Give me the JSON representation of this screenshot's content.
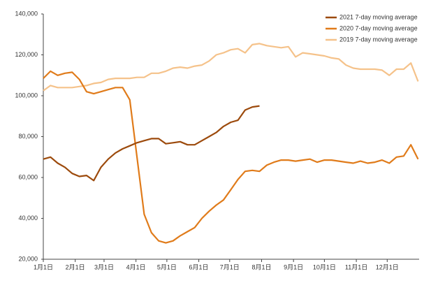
{
  "chart_data": {
    "type": "line",
    "x": [
      0,
      7,
      14,
      21,
      28,
      35,
      42,
      49,
      56,
      63,
      70,
      77,
      84,
      91,
      98,
      105,
      112,
      119,
      126,
      133,
      140,
      147,
      154,
      161,
      168,
      175,
      182,
      189,
      196,
      203,
      210,
      217,
      224,
      231,
      238,
      245,
      252,
      259,
      266,
      273,
      280,
      287,
      294,
      301,
      308,
      315,
      322,
      329,
      336,
      343,
      350,
      357,
      364
    ],
    "xlim": [
      0,
      365
    ],
    "xticks": [
      {
        "value": 0,
        "label": "1月1日"
      },
      {
        "value": 31,
        "label": "2月1日"
      },
      {
        "value": 59,
        "label": "3月1日"
      },
      {
        "value": 90,
        "label": "4月1日"
      },
      {
        "value": 120,
        "label": "5月1日"
      },
      {
        "value": 151,
        "label": "6月1日"
      },
      {
        "value": 181,
        "label": "7月1日"
      },
      {
        "value": 212,
        "label": "8月1日"
      },
      {
        "value": 243,
        "label": "9月1日"
      },
      {
        "value": 273,
        "label": "10月1日"
      },
      {
        "value": 304,
        "label": "11月1日"
      },
      {
        "value": 334,
        "label": "12月1日"
      }
    ],
    "ylim": [
      20000,
      140000
    ],
    "yticks": [
      {
        "value": 20000,
        "label": "20,000"
      },
      {
        "value": 40000,
        "label": "40,000"
      },
      {
        "value": 60000,
        "label": "60,000"
      },
      {
        "value": 80000,
        "label": "80,000"
      },
      {
        "value": 100000,
        "label": "100,000"
      },
      {
        "value": 120000,
        "label": "120,000"
      },
      {
        "value": 140000,
        "label": "140,000"
      }
    ],
    "legend": "upper right",
    "series": [
      {
        "name": "2021 7-day moving average",
        "color": "#9c4a0c",
        "values": [
          69000,
          70000,
          67000,
          65000,
          62000,
          60500,
          61000,
          58500,
          65000,
          69000,
          72000,
          74000,
          75500,
          77000,
          78000,
          79000,
          79000,
          76500,
          77000,
          77500,
          76000,
          76000,
          78000,
          80000,
          82000,
          85000,
          87000,
          88000,
          93000,
          94500,
          95000,
          null,
          null,
          null,
          null,
          null,
          null,
          null,
          null,
          null,
          null,
          null,
          null,
          null,
          null,
          null,
          null,
          null,
          null,
          null,
          null,
          null,
          null
        ]
      },
      {
        "name": "2020 7-day moving average",
        "color": "#e07b1a",
        "values": [
          108500,
          112000,
          110000,
          111000,
          111500,
          108000,
          102000,
          101000,
          102000,
          103000,
          104000,
          104000,
          98000,
          70000,
          42000,
          33000,
          29000,
          28000,
          29000,
          31500,
          33500,
          35500,
          40000,
          43500,
          46500,
          49000,
          54000,
          59000,
          63000,
          63500,
          63000,
          66000,
          67500,
          68500,
          68500,
          68000,
          68500,
          69000,
          67500,
          68500,
          68500,
          68000,
          67500,
          67000,
          68000,
          67000,
          67500,
          68500,
          67000,
          70000,
          70500,
          76000,
          69000
        ]
      },
      {
        "name": "2019 7-day moving average",
        "color": "#f5c28a",
        "values": [
          102500,
          105000,
          104000,
          104000,
          104000,
          104500,
          105000,
          106000,
          106500,
          108000,
          108500,
          108500,
          108500,
          109000,
          109000,
          111000,
          111000,
          112000,
          113500,
          114000,
          113500,
          114500,
          115000,
          117000,
          120000,
          121000,
          122500,
          123000,
          121000,
          125000,
          125500,
          124500,
          124000,
          123500,
          124000,
          119000,
          121000,
          120500,
          120000,
          119500,
          118500,
          118000,
          115000,
          113500,
          113000,
          113000,
          113000,
          112500,
          110000,
          113000,
          113000,
          116000,
          107000
        ]
      }
    ]
  }
}
